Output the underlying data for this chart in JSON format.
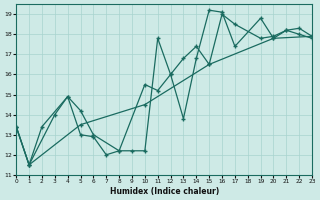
{
  "xlabel": "Humidex (Indice chaleur)",
  "xlim": [
    0,
    23
  ],
  "ylim": [
    11,
    19.5
  ],
  "yticks": [
    11,
    12,
    13,
    14,
    15,
    16,
    17,
    18,
    19
  ],
  "xticks": [
    0,
    1,
    2,
    3,
    4,
    5,
    6,
    7,
    8,
    9,
    10,
    11,
    12,
    13,
    14,
    15,
    16,
    17,
    18,
    19,
    20,
    21,
    22,
    23
  ],
  "background_color": "#ceeae6",
  "grid_color": "#a8d4cf",
  "line_color": "#1a6b60",
  "line1_x": [
    0,
    1,
    2,
    4,
    5,
    6,
    7,
    8,
    9,
    10,
    11,
    12,
    13,
    14,
    15,
    16,
    17,
    19,
    20,
    21,
    22,
    23
  ],
  "line1_y": [
    13.4,
    11.5,
    13.4,
    14.9,
    13.0,
    12.9,
    12.0,
    12.2,
    12.2,
    12.2,
    17.8,
    16.0,
    13.8,
    16.8,
    19.2,
    19.1,
    17.4,
    18.8,
    17.8,
    18.2,
    18.3,
    17.9
  ],
  "line2_x": [
    0,
    1,
    3,
    4,
    5,
    6,
    8,
    10,
    11,
    12,
    13,
    14,
    15,
    16,
    17,
    19,
    20,
    21,
    22,
    23
  ],
  "line2_y": [
    13.4,
    11.5,
    14.0,
    14.9,
    14.2,
    13.0,
    12.2,
    15.5,
    15.2,
    16.0,
    16.8,
    17.4,
    16.5,
    19.0,
    18.5,
    17.8,
    17.9,
    18.2,
    18.0,
    17.8
  ],
  "line3_x": [
    0,
    1,
    5,
    10,
    15,
    20,
    23
  ],
  "line3_y": [
    13.4,
    11.5,
    13.5,
    14.5,
    16.5,
    17.8,
    17.9
  ]
}
